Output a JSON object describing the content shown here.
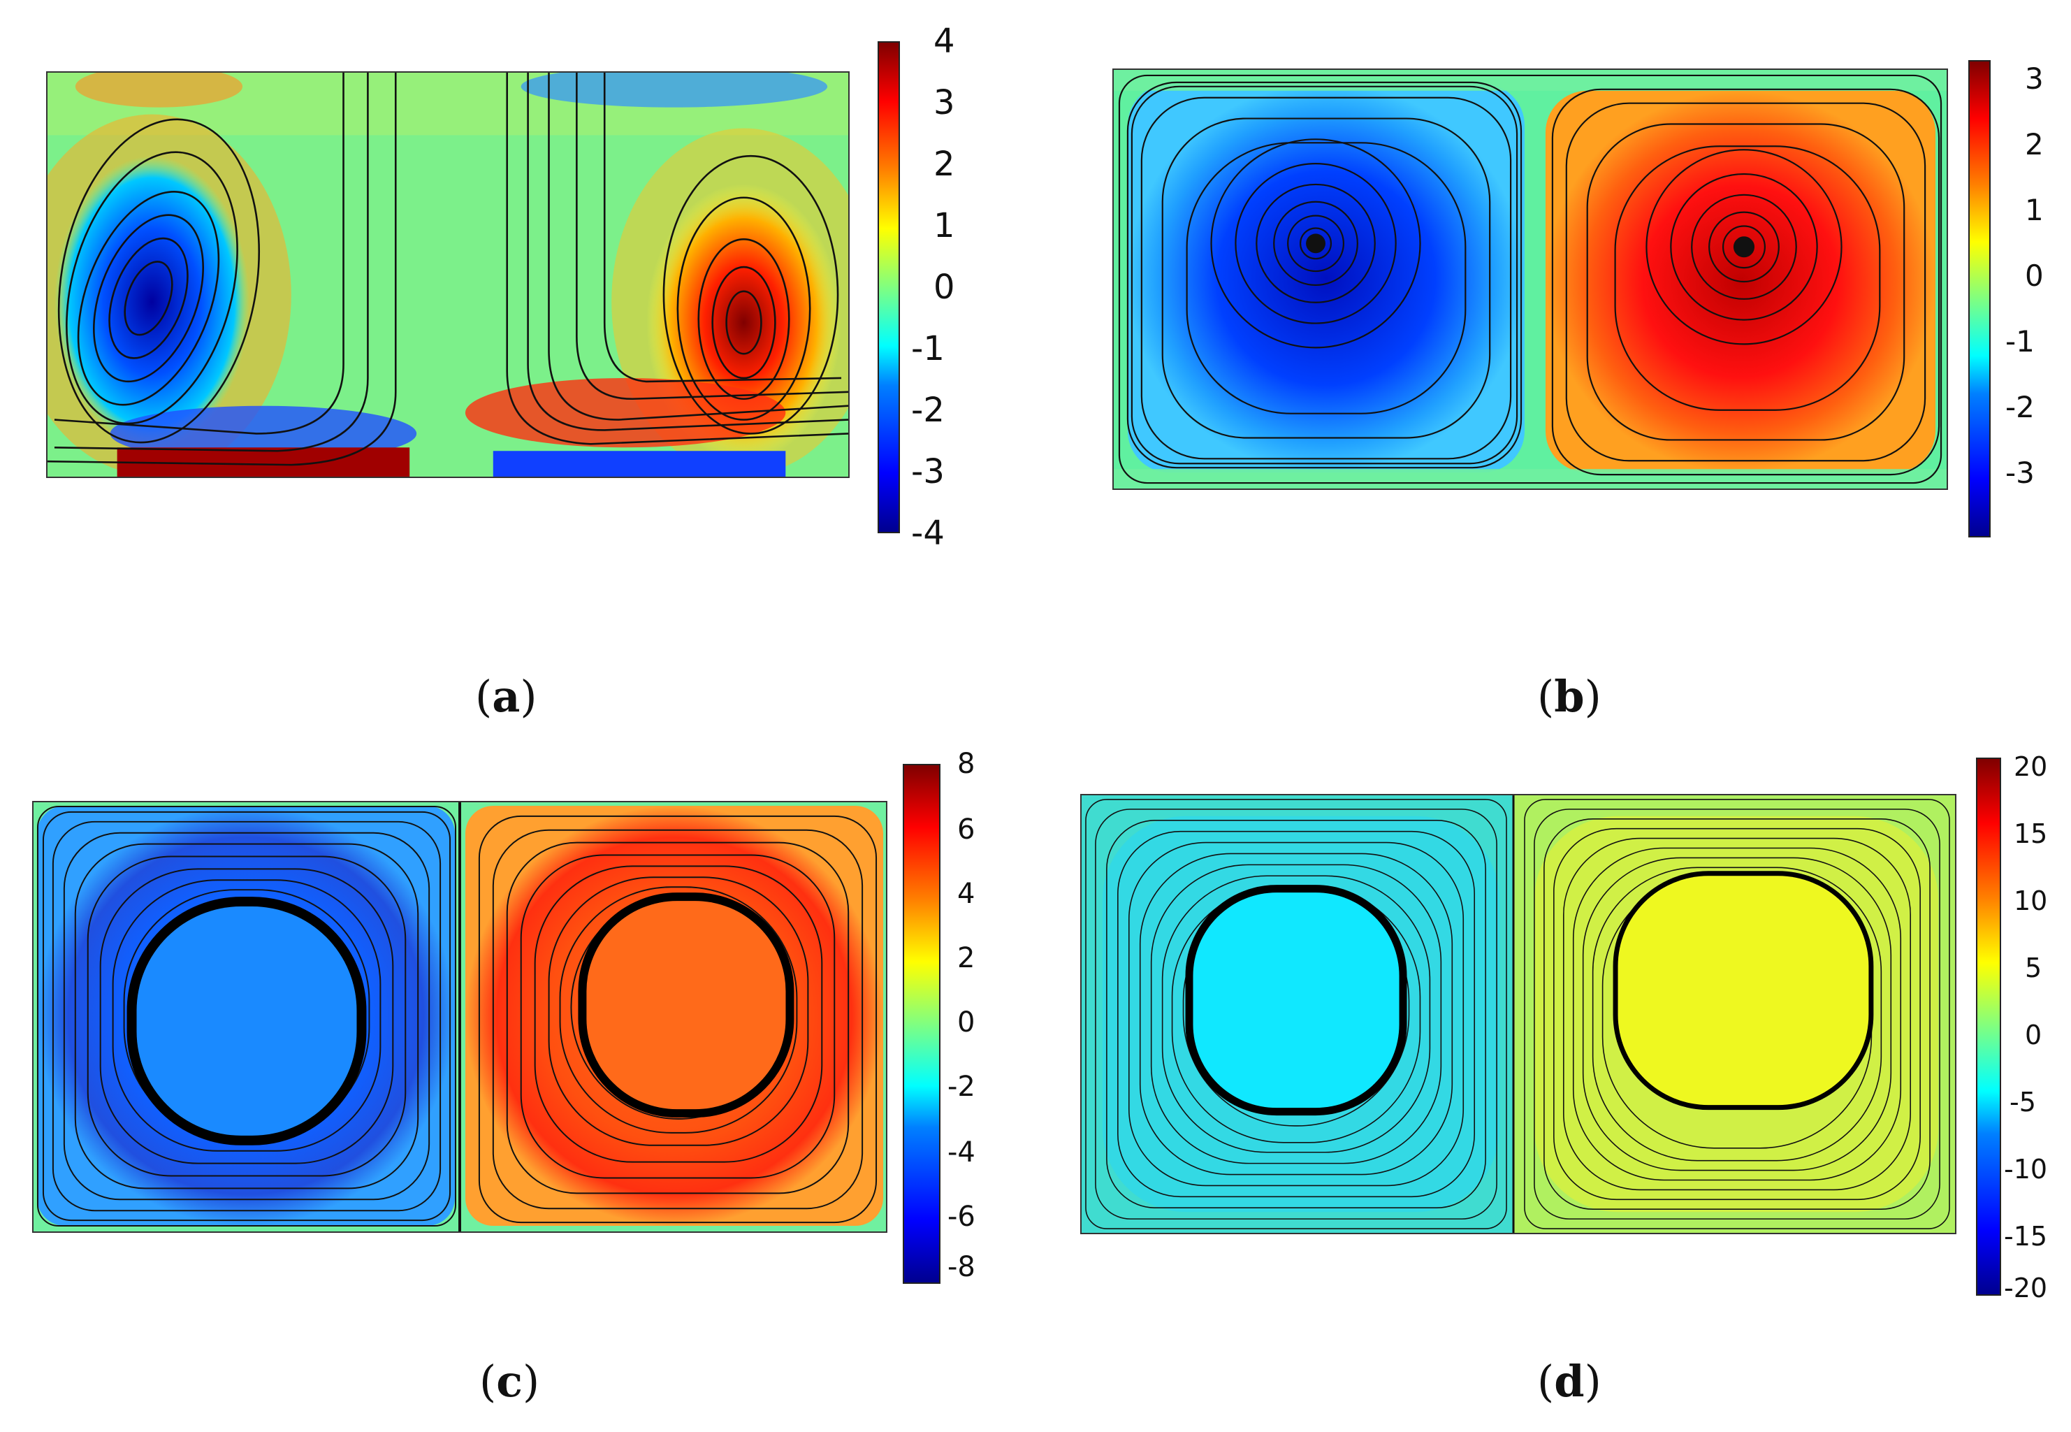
{
  "panels": [
    {
      "id": "a",
      "caption_letter": "a",
      "colorbar": {
        "ticks": [
          "4",
          "3",
          "2",
          "1",
          "0",
          "-1",
          "-2",
          "-3",
          "-4"
        ]
      }
    },
    {
      "id": "b",
      "caption_letter": "b",
      "colorbar": {
        "ticks": [
          "3",
          "2",
          "1",
          "0",
          "-1",
          "-2",
          "-3"
        ]
      }
    },
    {
      "id": "c",
      "caption_letter": "c",
      "colorbar": {
        "ticks": [
          "8",
          "6",
          "4",
          "2",
          "0",
          "-2",
          "-4",
          "-6",
          "-8"
        ]
      }
    },
    {
      "id": "d",
      "caption_letter": "d",
      "colorbar": {
        "ticks": [
          "20",
          "15",
          "10",
          "5",
          "0",
          "-5",
          "-10",
          "-15",
          "-20"
        ]
      }
    }
  ]
}
